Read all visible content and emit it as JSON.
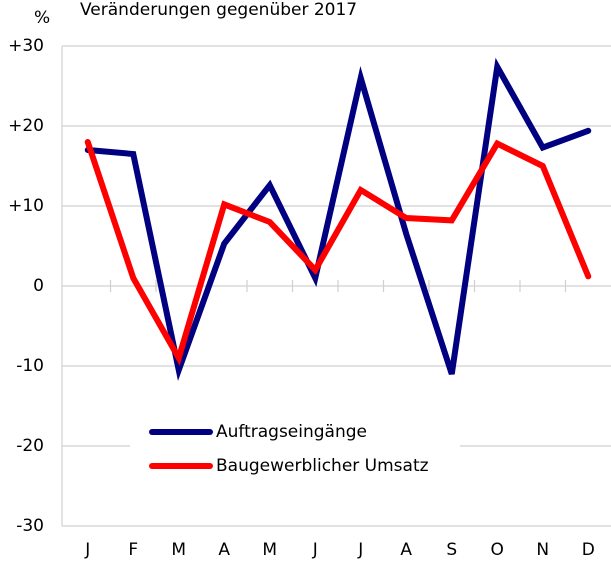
{
  "chart_data": {
    "type": "line",
    "title": "Veränderungen gegenüber 2017",
    "y_label": "%",
    "categories": [
      "J",
      "F",
      "M",
      "A",
      "M",
      "J",
      "J",
      "A",
      "S",
      "O",
      "N",
      "D"
    ],
    "series": [
      {
        "name": "Auftragseingänge",
        "color": "#000080",
        "values": [
          17,
          16.5,
          -10.5,
          5.3,
          12.6,
          1,
          26,
          6.5,
          -11,
          27.4,
          17.3,
          19.4
        ]
      },
      {
        "name": "Baugewerblicher Umsatz",
        "color": "#ff0000",
        "values": [
          18,
          1,
          -9,
          10.2,
          8,
          2,
          12,
          8.5,
          8.2,
          17.8,
          15,
          1.2
        ]
      }
    ],
    "ylim": [
      -30,
      30
    ],
    "yticks": [
      {
        "value": 30,
        "label": "+30"
      },
      {
        "value": 20,
        "label": "+20"
      },
      {
        "value": 10,
        "label": "+10"
      },
      0,
      -10,
      -20,
      -30
    ],
    "grid": true
  }
}
